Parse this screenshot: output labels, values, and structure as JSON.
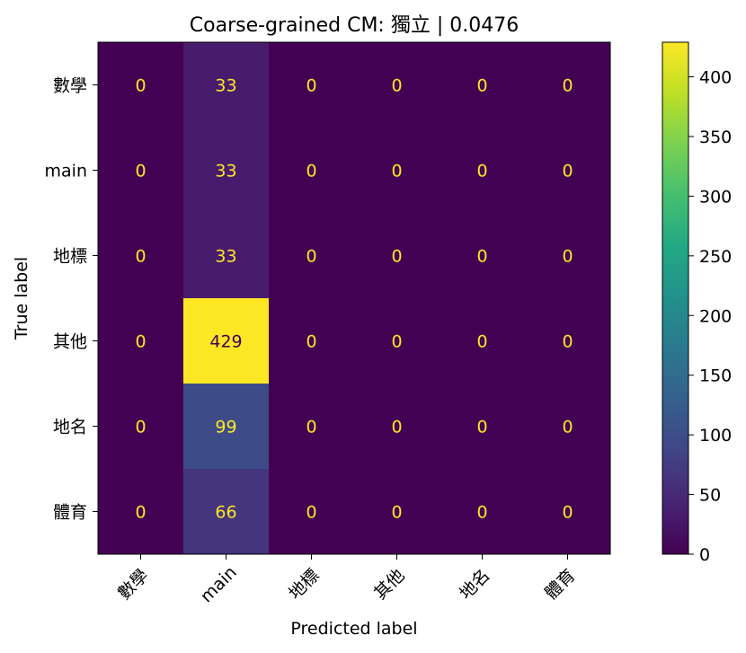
{
  "chart_data": {
    "type": "heatmap",
    "title": "Coarse-grained CM: 獨立 | 0.0476",
    "xlabel": "Predicted label",
    "ylabel": "True label",
    "x_categories": [
      "數學",
      "main",
      "地標",
      "其他",
      "地名",
      "體育"
    ],
    "y_categories": [
      "數學",
      "main",
      "地標",
      "其他",
      "地名",
      "體育"
    ],
    "values": [
      [
        0,
        33,
        0,
        0,
        0,
        0
      ],
      [
        0,
        33,
        0,
        0,
        0,
        0
      ],
      [
        0,
        33,
        0,
        0,
        0,
        0
      ],
      [
        0,
        429,
        0,
        0,
        0,
        0
      ],
      [
        0,
        99,
        0,
        0,
        0,
        0
      ],
      [
        0,
        66,
        0,
        0,
        0,
        0
      ]
    ],
    "colorbar": {
      "colormap": "viridis",
      "vmin": 0,
      "vmax": 429,
      "ticks": [
        0,
        50,
        100,
        150,
        200,
        250,
        300,
        350,
        400
      ]
    },
    "label_colors": {
      "on_dark": "#fde725",
      "on_light": "#440154"
    }
  }
}
